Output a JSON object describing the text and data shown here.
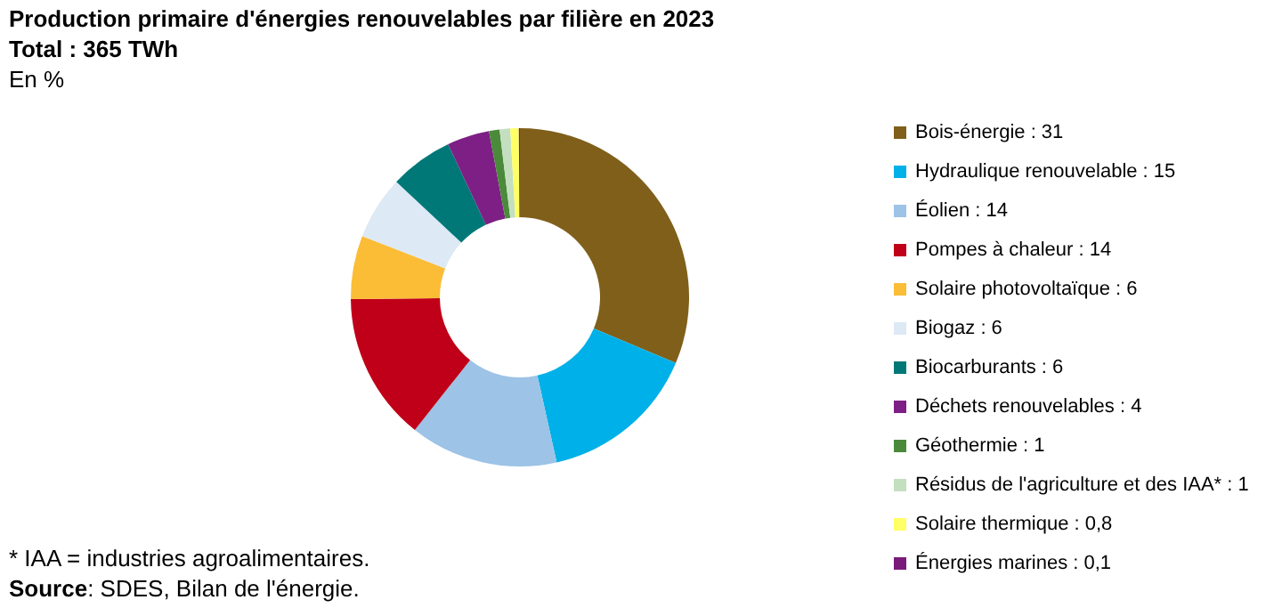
{
  "chart_data": {
    "type": "donut",
    "title": "Production primaire d'énergies renouvelables par filière en 2023",
    "subtitle": "Total : 365 TWh",
    "ylabel": "En %",
    "categories": [
      "Bois-énergie",
      "Hydraulique renouvelable",
      "Éolien",
      "Pompes à chaleur",
      "Solaire photovoltaïque",
      "Biogaz",
      "Biocarburants",
      "Déchets renouvelables",
      "Géothermie",
      "Résidus de l'agriculture et des IAA*",
      "Solaire thermique",
      "Énergies marines"
    ],
    "values": [
      31,
      15,
      14,
      14,
      6,
      6,
      6,
      4,
      1,
      1,
      0.8,
      0.1
    ],
    "value_labels": [
      "31",
      "15",
      "14",
      "14",
      "6",
      "6",
      "6",
      "4",
      "1",
      "1",
      "0,8",
      "0,1"
    ],
    "colors": [
      "#7f5f1a",
      "#00b0e8",
      "#9dc3e6",
      "#c00018",
      "#fbbd36",
      "#dde9f5",
      "#007878",
      "#7d1f85",
      "#4a8a3a",
      "#c4dfc0",
      "#ffff66",
      "#7a1a7a"
    ],
    "legend": "right",
    "annotations": [
      "* IAA = industries agroalimentaires.",
      "Source: SDES, Bilan de l'énergie."
    ]
  }
}
